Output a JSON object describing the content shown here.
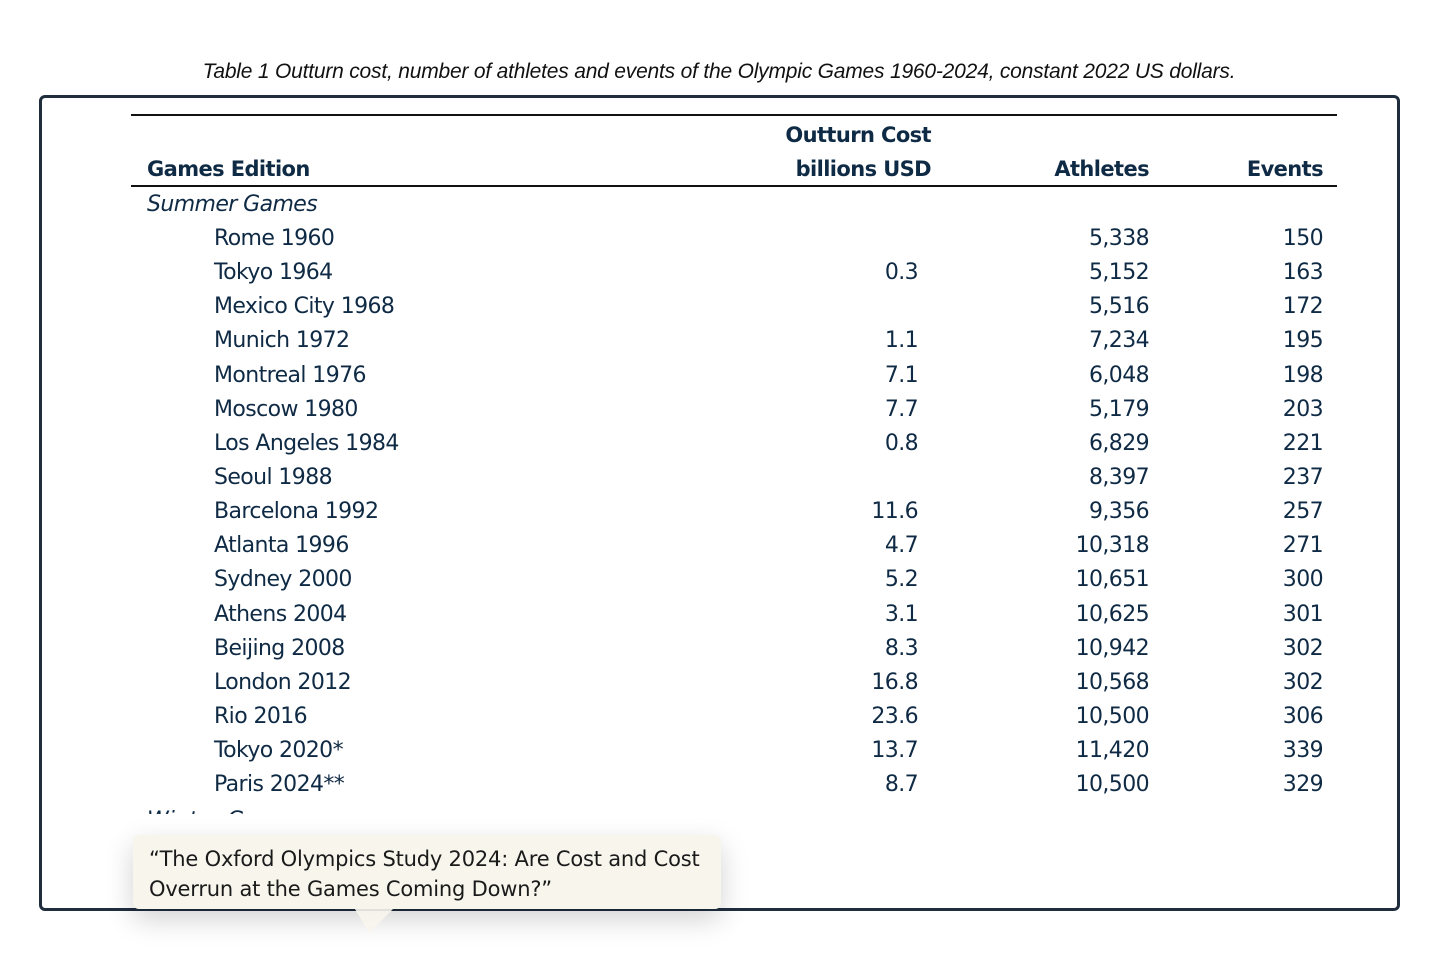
{
  "caption": "Table 1 Outturn cost, number of athletes and events of the Olympic Games 1960-2024, constant 2022 US dollars.",
  "table": {
    "headers": {
      "edition": "Games Edition",
      "cost_line1": "Outturn Cost",
      "cost_line2": "billions USD",
      "athletes": "Athletes",
      "events": "Events"
    },
    "section_summer": "Summer Games",
    "section_winter_partial": "Winter Games",
    "rows": [
      {
        "name": "Rome 1960",
        "cost": "",
        "athletes": "5,338",
        "events": "150"
      },
      {
        "name": "Tokyo 1964",
        "cost": "0.3",
        "athletes": "5,152",
        "events": "163"
      },
      {
        "name": "Mexico City 1968",
        "cost": "",
        "athletes": "5,516",
        "events": "172"
      },
      {
        "name": "Munich 1972",
        "cost": "1.1",
        "athletes": "7,234",
        "events": "195"
      },
      {
        "name": "Montreal 1976",
        "cost": "7.1",
        "athletes": "6,048",
        "events": "198"
      },
      {
        "name": "Moscow 1980",
        "cost": "7.7",
        "athletes": "5,179",
        "events": "203"
      },
      {
        "name": "Los Angeles 1984",
        "cost": "0.8",
        "athletes": "6,829",
        "events": "221"
      },
      {
        "name": "Seoul 1988",
        "cost": "",
        "athletes": "8,397",
        "events": "237"
      },
      {
        "name": "Barcelona 1992",
        "cost": "11.6",
        "athletes": "9,356",
        "events": "257"
      },
      {
        "name": "Atlanta 1996",
        "cost": "4.7",
        "athletes": "10,318",
        "events": "271"
      },
      {
        "name": "Sydney 2000",
        "cost": "5.2",
        "athletes": "10,651",
        "events": "300"
      },
      {
        "name": "Athens 2004",
        "cost": "3.1",
        "athletes": "10,625",
        "events": "301"
      },
      {
        "name": "Beijing 2008",
        "cost": "8.3",
        "athletes": "10,942",
        "events": "302"
      },
      {
        "name": "London 2012",
        "cost": "16.8",
        "athletes": "10,568",
        "events": "302"
      },
      {
        "name": "Rio 2016",
        "cost": "23.6",
        "athletes": "10,500",
        "events": "306"
      },
      {
        "name": "Tokyo 2020*",
        "cost": "13.7",
        "athletes": "11,420",
        "events": "339"
      },
      {
        "name": "Paris 2024**",
        "cost": "8.7",
        "athletes": "10,500",
        "events": "329"
      }
    ]
  },
  "tooltip": {
    "text": "“The Oxford Olympics Study 2024: Are Cost and Cost Overrun at the Games Coming Down?”"
  }
}
